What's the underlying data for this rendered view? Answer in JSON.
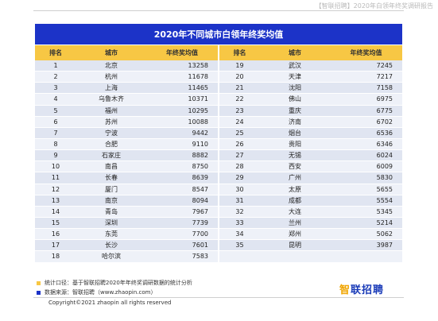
{
  "report_title": "【智联招聘】2020年白领年终奖调研报告",
  "table": {
    "title": "2020年不同城市白领年终奖均值",
    "headers": [
      "排名",
      "城市",
      "年终奖均值",
      "排名",
      "城市",
      "年终奖均值"
    ],
    "rows": [
      {
        "rank1": "1",
        "city1": "北京",
        "value1": "13258",
        "rank2": "19",
        "city2": "武汉",
        "value2": "7245"
      },
      {
        "rank1": "2",
        "city1": "杭州",
        "value1": "11678",
        "rank2": "20",
        "city2": "天津",
        "value2": "7217"
      },
      {
        "rank1": "3",
        "city1": "上海",
        "value1": "11465",
        "rank2": "21",
        "city2": "沈阳",
        "value2": "7158"
      },
      {
        "rank1": "4",
        "city1": "乌鲁木齐",
        "value1": "10371",
        "rank2": "22",
        "city2": "佛山",
        "value2": "6975"
      },
      {
        "rank1": "5",
        "city1": "福州",
        "value1": "10295",
        "rank2": "23",
        "city2": "重庆",
        "value2": "6775"
      },
      {
        "rank1": "6",
        "city1": "苏州",
        "value1": "10088",
        "rank2": "24",
        "city2": "济南",
        "value2": "6702"
      },
      {
        "rank1": "7",
        "city1": "宁波",
        "value1": "9442",
        "rank2": "25",
        "city2": "烟台",
        "value2": "6536"
      },
      {
        "rank1": "8",
        "city1": "合肥",
        "value1": "9110",
        "rank2": "26",
        "city2": "贵阳",
        "value2": "6346"
      },
      {
        "rank1": "9",
        "city1": "石家庄",
        "value1": "8882",
        "rank2": "27",
        "city2": "无锡",
        "value2": "6024"
      },
      {
        "rank1": "10",
        "city1": "南昌",
        "value1": "8750",
        "rank2": "28",
        "city2": "西安",
        "value2": "6009"
      },
      {
        "rank1": "11",
        "city1": "长春",
        "value1": "8639",
        "rank2": "29",
        "city2": "广州",
        "value2": "5830"
      },
      {
        "rank1": "12",
        "city1": "厦门",
        "value1": "8547",
        "rank2": "30",
        "city2": "太原",
        "value2": "5655"
      },
      {
        "rank1": "13",
        "city1": "南京",
        "value1": "8094",
        "rank2": "31",
        "city2": "成都",
        "value2": "5554"
      },
      {
        "rank1": "14",
        "city1": "青岛",
        "value1": "7967",
        "rank2": "32",
        "city2": "大连",
        "value2": "5345"
      },
      {
        "rank1": "15",
        "city1": "深圳",
        "value1": "7739",
        "rank2": "33",
        "city2": "兰州",
        "value2": "5214"
      },
      {
        "rank1": "16",
        "city1": "东莞",
        "value1": "7700",
        "rank2": "34",
        "city2": "郑州",
        "value2": "5062"
      },
      {
        "rank1": "17",
        "city1": "长沙",
        "value1": "7601",
        "rank2": "35",
        "city2": "昆明",
        "value2": "3987"
      },
      {
        "rank1": "18",
        "city1": "哈尔滨",
        "value1": "7583",
        "rank2": "",
        "city2": "",
        "value2": ""
      }
    ]
  },
  "notes": {
    "stat_caliber": "统计口径：基于智联招聘2020年年终奖调研数据的统计分析",
    "source": "数据来源：智联招聘（www.zhaopin.com）"
  },
  "brand": {
    "part1": "智",
    "part2": "联招聘"
  },
  "copyright": "Copyright©2021 zhaopin all rights reserved",
  "colors": {
    "title_bar": "#1c33c8",
    "header": "#f7c744",
    "note_bullet_1": "#f7c744",
    "note_bullet_2": "#1c33c8",
    "brand_blue": "#1a3bb8",
    "brand_accent": "#f0a500"
  }
}
